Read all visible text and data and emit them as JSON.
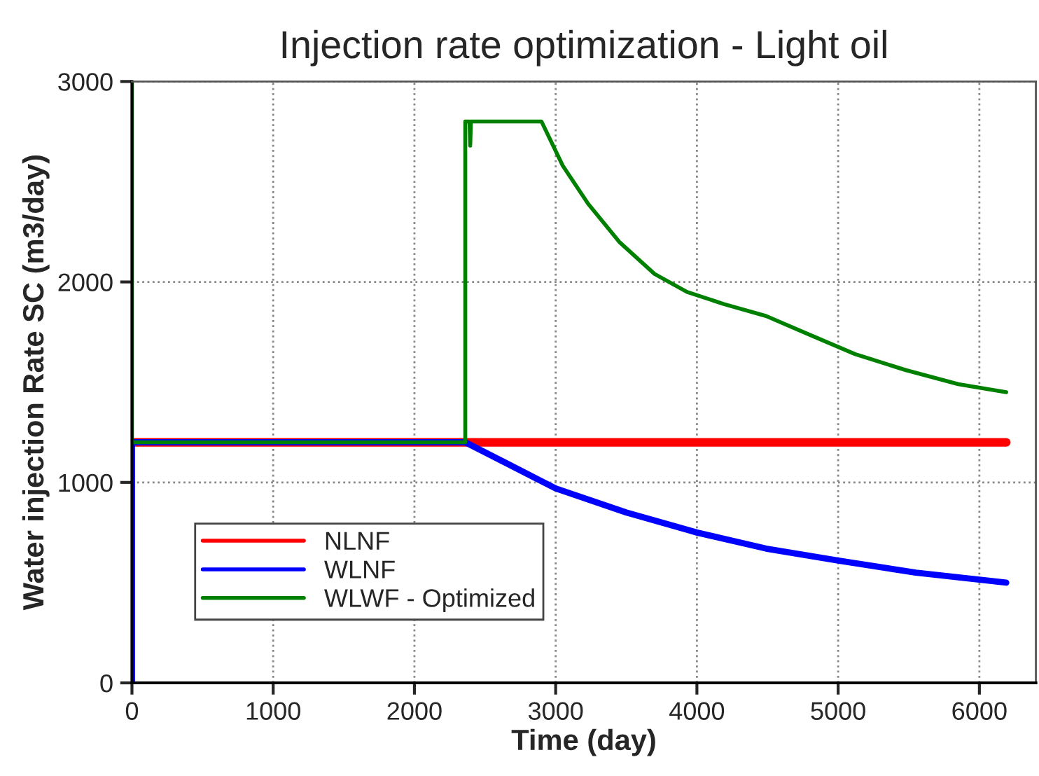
{
  "chart_data": {
    "type": "line",
    "title": "Injection rate optimization - Light oil",
    "xlabel": "Time (day)",
    "ylabel": "Water injection Rate SC (m3/day)",
    "xlim": [
      0,
      6400
    ],
    "xticks": [
      0,
      1000,
      2000,
      3000,
      4000,
      5000,
      6000
    ],
    "ylim": [
      0,
      3000
    ],
    "yticks": [
      0,
      1000,
      2000,
      3000
    ],
    "grid": true,
    "legend": "bottom left",
    "line_style": "solid",
    "marker": "none",
    "series": [
      {
        "name": "NLNF",
        "color": "#ff0000",
        "x": [
          0,
          6190
        ],
        "values": [
          1200,
          1200
        ]
      },
      {
        "name": "WLNF",
        "color": "#0000ff",
        "x": [
          0,
          0,
          2360,
          2640,
          3000,
          3500,
          4000,
          4490,
          5000,
          5550,
          6190
        ],
        "values": [
          0,
          1200,
          1200,
          1100,
          970,
          850,
          750,
          670,
          610,
          550,
          500
        ]
      },
      {
        "name": "WLWF - Optimized",
        "color": "#008000",
        "x": [
          0,
          0,
          2360,
          2360,
          2390,
          2395,
          2400,
          2900,
          3050,
          3230,
          3450,
          3700,
          3930,
          4190,
          4490,
          4820,
          5120,
          5480,
          5850,
          6190
        ],
        "values": [
          3000,
          1200,
          1200,
          2800,
          2800,
          2680,
          2800,
          2800,
          2580,
          2390,
          2200,
          2040,
          1950,
          1890,
          1830,
          1730,
          1640,
          1560,
          1490,
          1450
        ]
      }
    ]
  }
}
